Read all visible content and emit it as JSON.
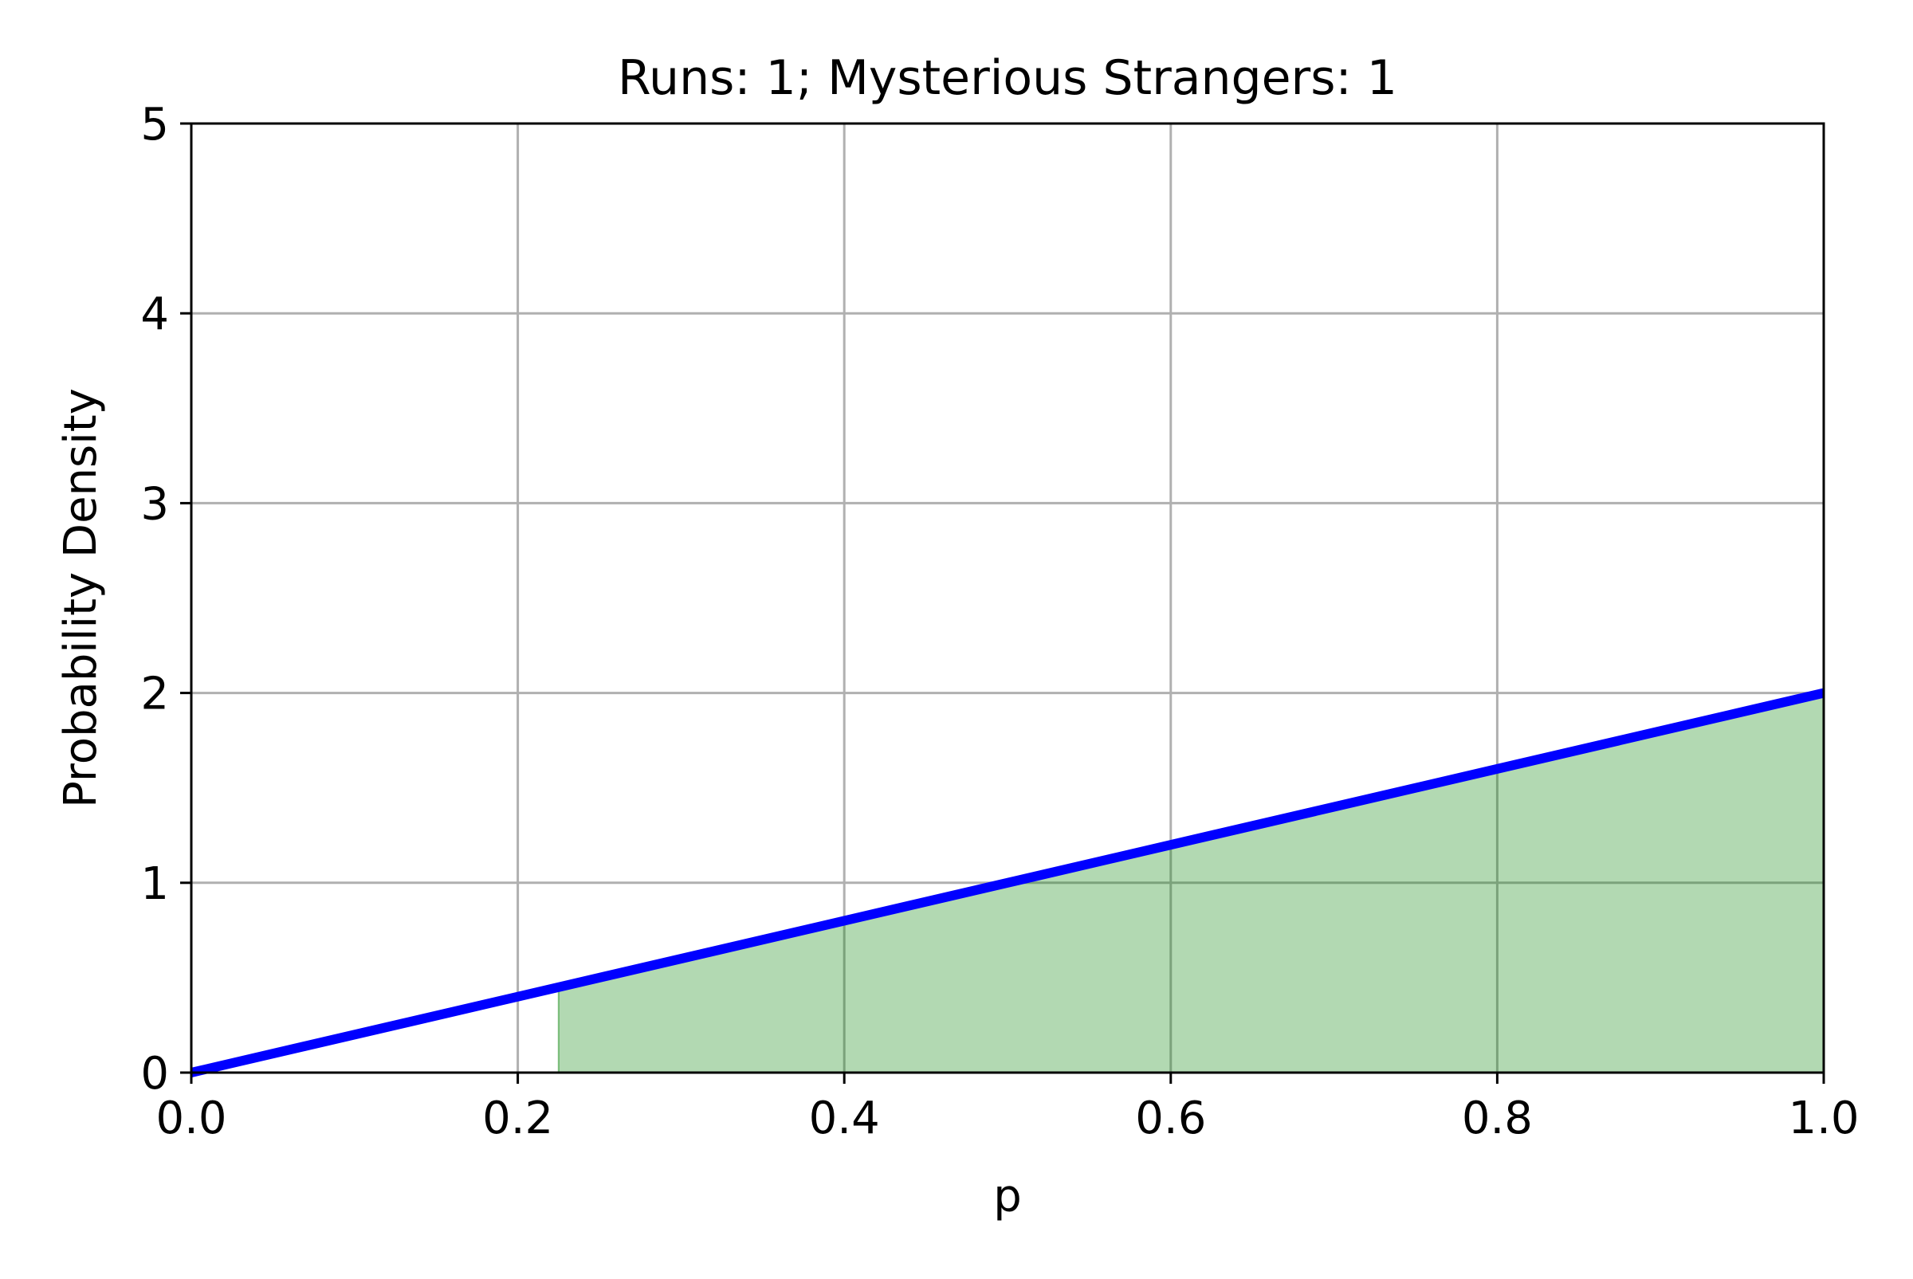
{
  "chart_data": {
    "type": "line",
    "title": "Runs: 1; Mysterious Strangers: 1",
    "xlabel": "p",
    "ylabel": "Probability Density",
    "xlim": [
      0.0,
      1.0
    ],
    "ylim": [
      0,
      5
    ],
    "x_ticks": [
      "0.0",
      "0.2",
      "0.4",
      "0.6",
      "0.8",
      "1.0"
    ],
    "x_tick_values": [
      0.0,
      0.2,
      0.4,
      0.6,
      0.8,
      1.0
    ],
    "y_ticks": [
      "0",
      "1",
      "2",
      "3",
      "4",
      "5"
    ],
    "y_tick_values": [
      0,
      1,
      2,
      3,
      4,
      5
    ],
    "grid": true,
    "series": [
      {
        "kind": "line",
        "color": "#0000ff",
        "x": [
          0.0,
          1.0
        ],
        "y": [
          0.0,
          2.0
        ]
      },
      {
        "kind": "area",
        "color": "#008000",
        "opacity": 0.3,
        "x": [
          0.225,
          1.0
        ],
        "y": [
          0.45,
          2.0
        ]
      }
    ]
  }
}
